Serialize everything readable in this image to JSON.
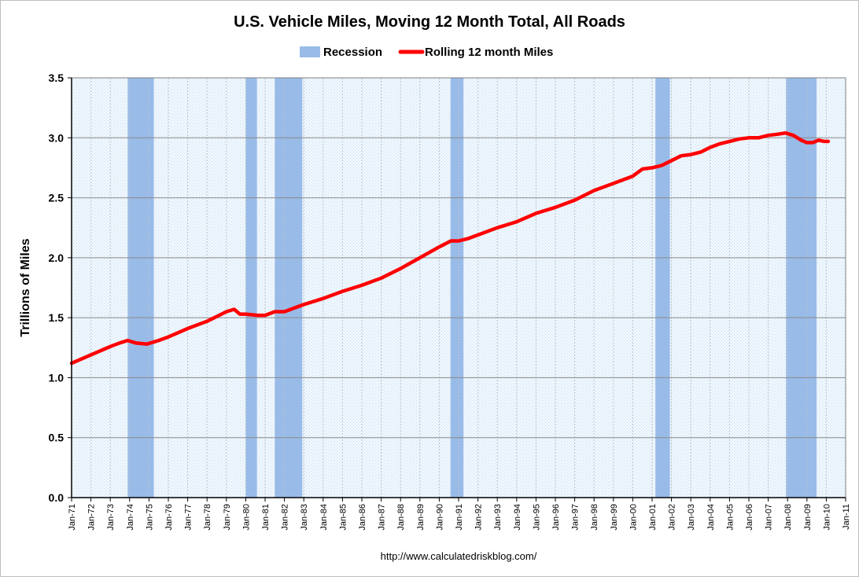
{
  "chart_data": {
    "type": "line",
    "title": "U.S. Vehicle Miles, Moving 12 Month Total, All Roads",
    "ylabel": "Trillions of Miles",
    "ylim": [
      0,
      3.5
    ],
    "yticks": [
      "0.0",
      "0.5",
      "1.0",
      "1.5",
      "2.0",
      "2.5",
      "3.0",
      "3.5"
    ],
    "x_tick_labels": [
      "Jan-71",
      "Jan-72",
      "Jan-73",
      "Jan-74",
      "Jan-75",
      "Jan-76",
      "Jan-77",
      "Jan-78",
      "Jan-79",
      "Jan-80",
      "Jan-81",
      "Jan-82",
      "Jan-83",
      "Jan-84",
      "Jan-85",
      "Jan-86",
      "Jan-87",
      "Jan-88",
      "Jan-89",
      "Jan-90",
      "Jan-91",
      "Jan-92",
      "Jan-93",
      "Jan-94",
      "Jan-95",
      "Jan-96",
      "Jan-97",
      "Jan-98",
      "Jan-99",
      "Jan-00",
      "Jan-01",
      "Jan-02",
      "Jan-03",
      "Jan-04",
      "Jan-05",
      "Jan-06",
      "Jan-07",
      "Jan-08",
      "Jan-09",
      "Jan-10",
      "Jan-11"
    ],
    "xlim": [
      1971.0,
      2011.0
    ],
    "grid": true,
    "legend_position": "top-center",
    "legend": [
      {
        "label": "Recession",
        "color": "#99bbe8"
      },
      {
        "label": "Rolling 12 month Miles",
        "color": "#ff0000"
      }
    ],
    "recessions": [
      [
        1973.9,
        1975.25
      ],
      [
        1980.0,
        1980.58
      ],
      [
        1981.5,
        1982.92
      ],
      [
        1990.58,
        1991.25
      ],
      [
        2001.17,
        2001.92
      ],
      [
        2007.92,
        2009.5
      ]
    ],
    "series": [
      {
        "name": "Rolling 12 month Miles",
        "color": "#ff0000",
        "x": [
          1971.0,
          1972.0,
          1973.0,
          1973.5,
          1973.9,
          1974.3,
          1974.9,
          1975.5,
          1976.0,
          1977.0,
          1978.0,
          1978.5,
          1979.0,
          1979.4,
          1979.7,
          1980.0,
          1980.6,
          1981.0,
          1981.5,
          1982.0,
          1982.5,
          1983.0,
          1984.0,
          1985.0,
          1986.0,
          1987.0,
          1988.0,
          1989.0,
          1990.0,
          1990.6,
          1991.0,
          1991.5,
          1992.0,
          1993.0,
          1994.0,
          1995.0,
          1996.0,
          1997.0,
          1998.0,
          1999.0,
          2000.0,
          2000.5,
          2001.0,
          2001.5,
          2002.0,
          2002.5,
          2003.0,
          2003.5,
          2004.0,
          2004.5,
          2005.0,
          2005.5,
          2006.0,
          2006.5,
          2007.0,
          2007.5,
          2007.9,
          2008.3,
          2008.7,
          2009.0,
          2009.3,
          2009.6,
          2009.9,
          2010.1
        ],
        "values": [
          1.12,
          1.19,
          1.26,
          1.29,
          1.31,
          1.29,
          1.28,
          1.31,
          1.34,
          1.41,
          1.47,
          1.51,
          1.55,
          1.57,
          1.53,
          1.53,
          1.52,
          1.52,
          1.55,
          1.55,
          1.58,
          1.61,
          1.66,
          1.72,
          1.77,
          1.83,
          1.91,
          2.0,
          2.09,
          2.14,
          2.14,
          2.16,
          2.19,
          2.25,
          2.3,
          2.37,
          2.42,
          2.48,
          2.56,
          2.62,
          2.68,
          2.74,
          2.75,
          2.77,
          2.81,
          2.85,
          2.86,
          2.88,
          2.92,
          2.95,
          2.97,
          2.99,
          3.0,
          3.0,
          3.02,
          3.03,
          3.04,
          3.02,
          2.98,
          2.96,
          2.96,
          2.98,
          2.97,
          2.97
        ]
      }
    ],
    "source": "http://www.calculatedriskblog.com/"
  }
}
